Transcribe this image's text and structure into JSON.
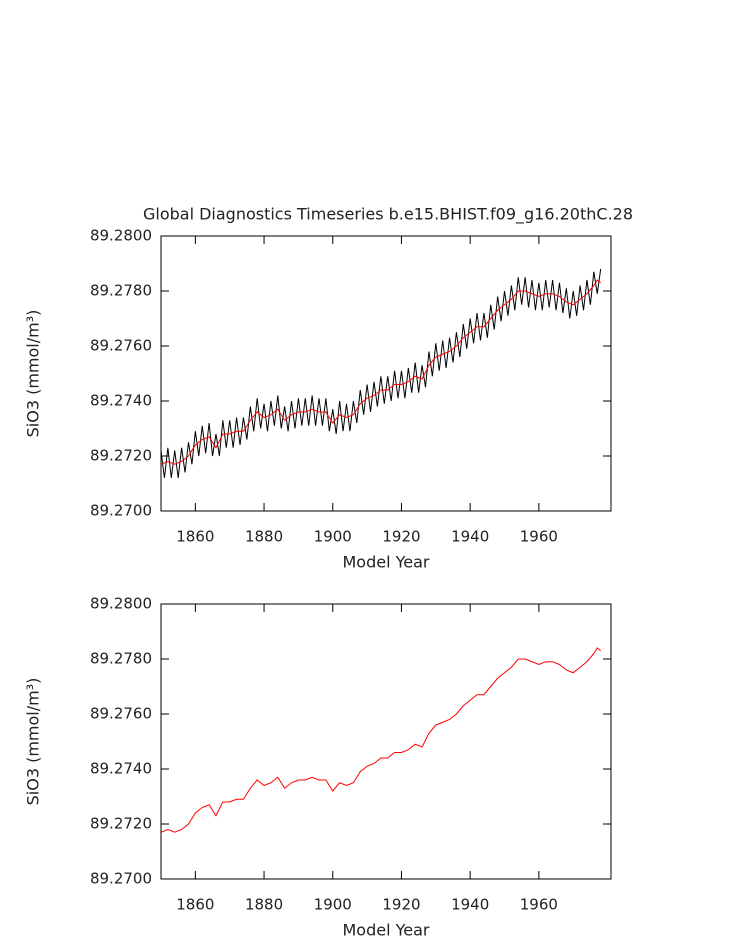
{
  "chart_data": [
    {
      "type": "line",
      "title": "Global Diagnostics Timeseries b.e15.BHIST.f09_g16.20thC.28",
      "xlabel": "Model Year",
      "ylabel": "SiO3 (mmol/m³)",
      "xlim": [
        1850,
        1981
      ],
      "xticks": [
        1860,
        1880,
        1900,
        1920,
        1940,
        1960
      ],
      "ylim": [
        89.27,
        89.28
      ],
      "yticks": [
        {
          "value": 89.27,
          "label": "89.2700"
        },
        {
          "value": 89.272,
          "label": "89.2720"
        },
        {
          "value": 89.274,
          "label": "89.2740"
        },
        {
          "value": 89.276,
          "label": "89.2760"
        },
        {
          "value": 89.278,
          "label": "89.2780"
        },
        {
          "value": 89.28,
          "label": "89.2800"
        }
      ],
      "series": [
        {
          "color": "#000000",
          "x": [
            1850,
            1851,
            1852,
            1853,
            1854,
            1855,
            1856,
            1857,
            1858,
            1859,
            1860,
            1861,
            1862,
            1863,
            1864,
            1865,
            1866,
            1867,
            1868,
            1869,
            1870,
            1871,
            1872,
            1873,
            1874,
            1875,
            1876,
            1877,
            1878,
            1879,
            1880,
            1881,
            1882,
            1883,
            1884,
            1885,
            1886,
            1887,
            1888,
            1889,
            1890,
            1891,
            1892,
            1893,
            1894,
            1895,
            1896,
            1897,
            1898,
            1899,
            1900,
            1901,
            1902,
            1903,
            1904,
            1905,
            1906,
            1907,
            1908,
            1909,
            1910,
            1911,
            1912,
            1913,
            1914,
            1915,
            1916,
            1917,
            1918,
            1919,
            1920,
            1921,
            1922,
            1923,
            1924,
            1925,
            1926,
            1927,
            1928,
            1929,
            1930,
            1931,
            1932,
            1933,
            1934,
            1935,
            1936,
            1937,
            1938,
            1939,
            1940,
            1941,
            1942,
            1943,
            1944,
            1945,
            1946,
            1947,
            1948,
            1949,
            1950,
            1951,
            1952,
            1953,
            1954,
            1955,
            1956,
            1957,
            1958,
            1959,
            1960,
            1961,
            1962,
            1963,
            1964,
            1965,
            1966,
            1967,
            1968,
            1969,
            1970,
            1971,
            1972,
            1973,
            1974,
            1975,
            1976,
            1977,
            1978
          ],
          "values": [
            89.2722,
            89.2712,
            89.2723,
            89.2712,
            89.2722,
            89.2712,
            89.2723,
            89.2714,
            89.2725,
            89.2717,
            89.2729,
            89.272,
            89.2731,
            89.2721,
            89.2732,
            89.272,
            89.2728,
            89.272,
            89.2733,
            89.2723,
            89.2733,
            89.2723,
            89.2734,
            89.2724,
            89.2734,
            89.2726,
            89.2738,
            89.2729,
            89.2741,
            89.273,
            89.2739,
            89.2729,
            89.274,
            89.2731,
            89.2742,
            89.273,
            89.2738,
            89.2729,
            89.274,
            89.273,
            89.2741,
            89.2731,
            89.2741,
            89.2731,
            89.2742,
            89.2731,
            89.2741,
            89.2731,
            89.2741,
            89.2729,
            89.2737,
            89.2728,
            89.274,
            89.2729,
            89.2739,
            89.2729,
            89.274,
            89.2732,
            89.2744,
            89.2735,
            89.2746,
            89.2736,
            89.2747,
            89.2738,
            89.2749,
            89.2739,
            89.2749,
            89.274,
            89.2751,
            89.2741,
            89.2751,
            89.2741,
            89.2752,
            89.2743,
            89.2754,
            89.2743,
            89.2753,
            89.2745,
            89.2758,
            89.2749,
            89.2761,
            89.2751,
            89.2762,
            89.2752,
            89.2763,
            89.2754,
            89.2765,
            89.2756,
            89.2768,
            89.2759,
            89.277,
            89.2761,
            89.2772,
            89.2762,
            89.2772,
            89.2763,
            89.2775,
            89.2766,
            89.2778,
            89.2769,
            89.278,
            89.2771,
            89.2782,
            89.2773,
            89.2785,
            89.2775,
            89.2785,
            89.2774,
            89.2784,
            89.2773,
            89.2783,
            89.2773,
            89.2784,
            89.2774,
            89.2784,
            89.2773,
            89.2783,
            89.2772,
            89.2781,
            89.277,
            89.278,
            89.2771,
            89.2782,
            89.2773,
            89.2784,
            89.2775,
            89.2787,
            89.2779,
            89.2788
          ]
        },
        {
          "color": "#ff0000",
          "x": [
            1850,
            1852,
            1854,
            1856,
            1858,
            1860,
            1862,
            1864,
            1866,
            1868,
            1870,
            1872,
            1874,
            1876,
            1878,
            1880,
            1882,
            1884,
            1886,
            1888,
            1890,
            1892,
            1894,
            1896,
            1898,
            1900,
            1902,
            1904,
            1906,
            1908,
            1910,
            1912,
            1914,
            1916,
            1918,
            1920,
            1922,
            1924,
            1926,
            1928,
            1930,
            1932,
            1934,
            1936,
            1938,
            1940,
            1942,
            1944,
            1946,
            1948,
            1950,
            1952,
            1954,
            1956,
            1958,
            1960,
            1962,
            1964,
            1966,
            1968,
            1970,
            1972,
            1974,
            1976,
            1977,
            1978
          ],
          "values": [
            89.2717,
            89.2718,
            89.2717,
            89.2718,
            89.272,
            89.2724,
            89.2726,
            89.2727,
            89.2723,
            89.2728,
            89.2728,
            89.2729,
            89.2729,
            89.2733,
            89.2736,
            89.2734,
            89.2735,
            89.2737,
            89.2733,
            89.2735,
            89.2736,
            89.2736,
            89.2737,
            89.2736,
            89.2736,
            89.2732,
            89.2735,
            89.2734,
            89.2735,
            89.2739,
            89.2741,
            89.2742,
            89.2744,
            89.2744,
            89.2746,
            89.2746,
            89.2747,
            89.2749,
            89.2748,
            89.2753,
            89.2756,
            89.2757,
            89.2758,
            89.276,
            89.2763,
            89.2765,
            89.2767,
            89.2767,
            89.277,
            89.2773,
            89.2775,
            89.2777,
            89.278,
            89.278,
            89.2779,
            89.2778,
            89.2779,
            89.2779,
            89.2778,
            89.2776,
            89.2775,
            89.2777,
            89.2779,
            89.2782,
            89.2784,
            89.2783
          ]
        }
      ]
    },
    {
      "type": "line",
      "xlabel": "Model Year",
      "ylabel": "SiO3 (mmol/m³)",
      "xlim": [
        1850,
        1981
      ],
      "xticks": [
        1860,
        1880,
        1900,
        1920,
        1940,
        1960
      ],
      "ylim": [
        89.27,
        89.28
      ],
      "yticks": [
        {
          "value": 89.27,
          "label": "89.2700"
        },
        {
          "value": 89.272,
          "label": "89.2720"
        },
        {
          "value": 89.274,
          "label": "89.2740"
        },
        {
          "value": 89.276,
          "label": "89.2760"
        },
        {
          "value": 89.278,
          "label": "89.2780"
        },
        {
          "value": 89.28,
          "label": "89.2800"
        }
      ],
      "series": [
        {
          "color": "#ff0000",
          "x": [
            1850,
            1852,
            1854,
            1856,
            1858,
            1860,
            1862,
            1864,
            1866,
            1868,
            1870,
            1872,
            1874,
            1876,
            1878,
            1880,
            1882,
            1884,
            1886,
            1888,
            1890,
            1892,
            1894,
            1896,
            1898,
            1900,
            1902,
            1904,
            1906,
            1908,
            1910,
            1912,
            1914,
            1916,
            1918,
            1920,
            1922,
            1924,
            1926,
            1928,
            1930,
            1932,
            1934,
            1936,
            1938,
            1940,
            1942,
            1944,
            1946,
            1948,
            1950,
            1952,
            1954,
            1956,
            1958,
            1960,
            1962,
            1964,
            1966,
            1968,
            1970,
            1972,
            1974,
            1976,
            1977,
            1978
          ],
          "values": [
            89.2717,
            89.2718,
            89.2717,
            89.2718,
            89.272,
            89.2724,
            89.2726,
            89.2727,
            89.2723,
            89.2728,
            89.2728,
            89.2729,
            89.2729,
            89.2733,
            89.2736,
            89.2734,
            89.2735,
            89.2737,
            89.2733,
            89.2735,
            89.2736,
            89.2736,
            89.2737,
            89.2736,
            89.2736,
            89.2732,
            89.2735,
            89.2734,
            89.2735,
            89.2739,
            89.2741,
            89.2742,
            89.2744,
            89.2744,
            89.2746,
            89.2746,
            89.2747,
            89.2749,
            89.2748,
            89.2753,
            89.2756,
            89.2757,
            89.2758,
            89.276,
            89.2763,
            89.2765,
            89.2767,
            89.2767,
            89.277,
            89.2773,
            89.2775,
            89.2777,
            89.278,
            89.278,
            89.2779,
            89.2778,
            89.2779,
            89.2779,
            89.2778,
            89.2776,
            89.2775,
            89.2777,
            89.2779,
            89.2782,
            89.2784,
            89.2783
          ]
        }
      ]
    }
  ]
}
